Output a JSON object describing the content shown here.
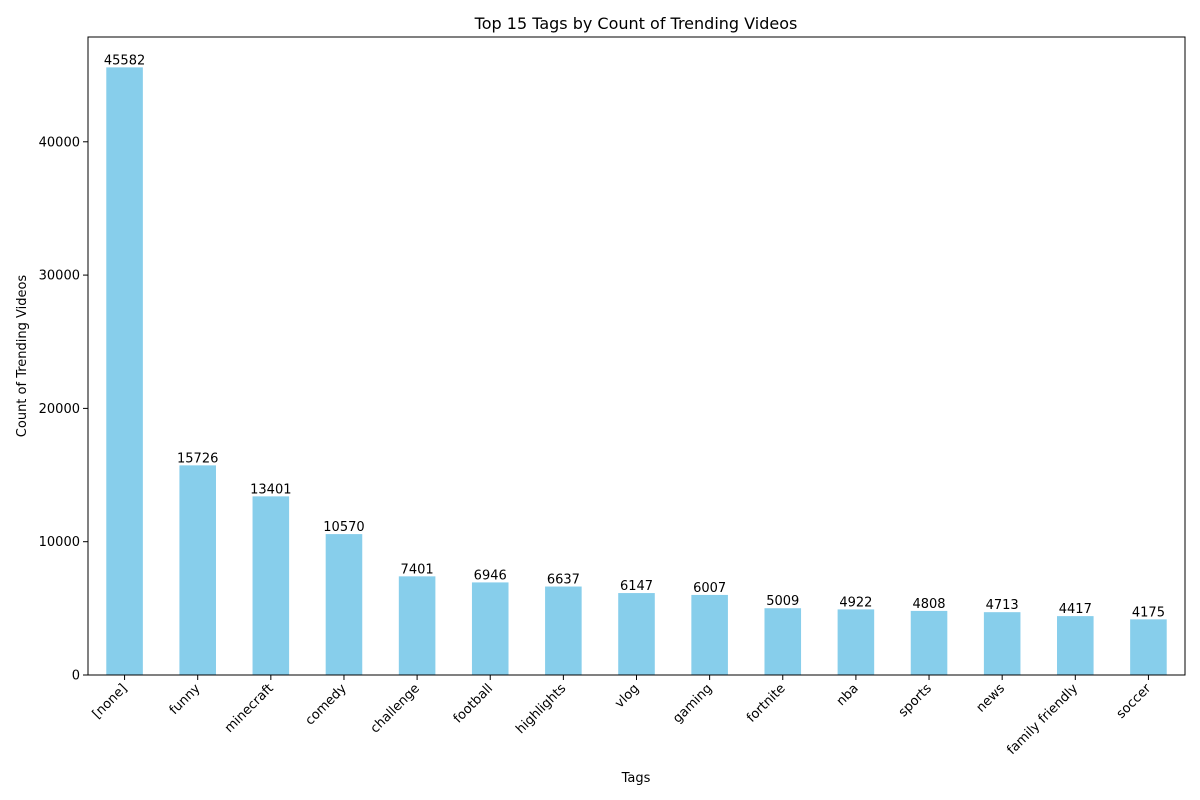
{
  "chart_data": {
    "type": "bar",
    "title": "Top 15 Tags by Count of Trending Videos",
    "xlabel": "Tags",
    "ylabel": "Count of Trending Videos",
    "categories": [
      "[none]",
      "funny",
      "minecraft",
      "comedy",
      "challenge",
      "football",
      "highlights",
      "vlog",
      "gaming",
      "fortnite",
      "nba",
      "sports",
      "news",
      "family friendly",
      "soccer"
    ],
    "values": [
      45582,
      15726,
      13401,
      10570,
      7401,
      6946,
      6637,
      6147,
      6007,
      5009,
      4922,
      4808,
      4713,
      4417,
      4175
    ],
    "yticks": [
      0,
      10000,
      20000,
      30000,
      40000
    ],
    "ylim": [
      0,
      47861
    ],
    "bar_color": "#87CEEB",
    "grid": false,
    "data_labels": true
  }
}
